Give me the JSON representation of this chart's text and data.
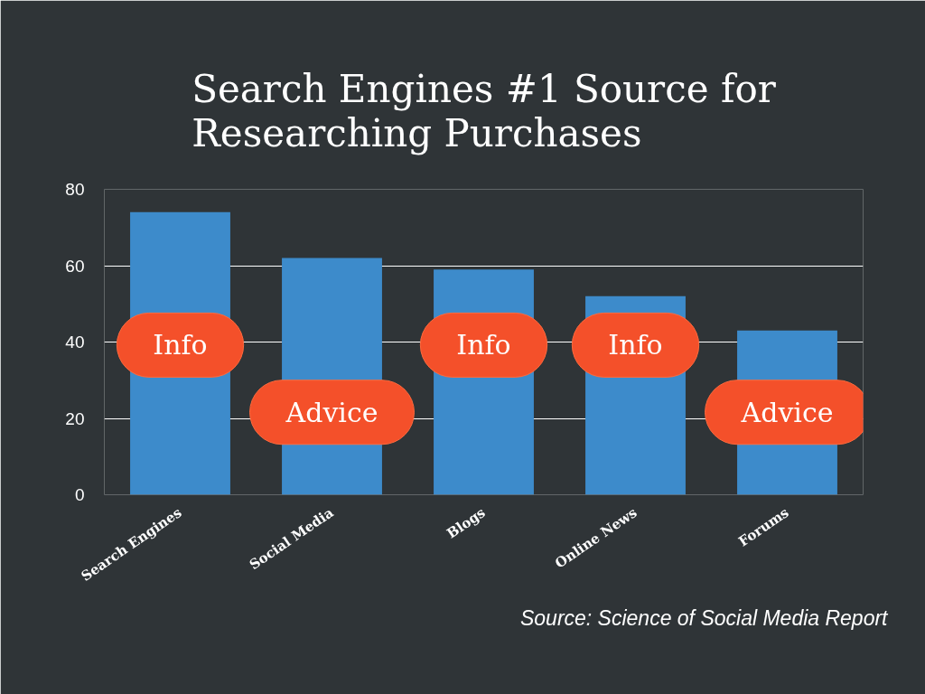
{
  "chart_data": {
    "type": "bar",
    "title": "Search Engines #1 Source for Researching Purchases",
    "categories": [
      "Search Engines",
      "Social Media",
      "Blogs",
      "Online News",
      "Forums"
    ],
    "values": [
      74,
      62,
      59,
      52,
      43
    ],
    "color": "#3d8bcb",
    "ylim": [
      0,
      80
    ],
    "yticks": [
      0,
      20,
      40,
      60,
      80
    ],
    "grid": "y",
    "annotations": [
      "Info",
      "Advice",
      "Info",
      "Info",
      "Advice",
      "Source: Science of Social Media Report"
    ]
  }
}
